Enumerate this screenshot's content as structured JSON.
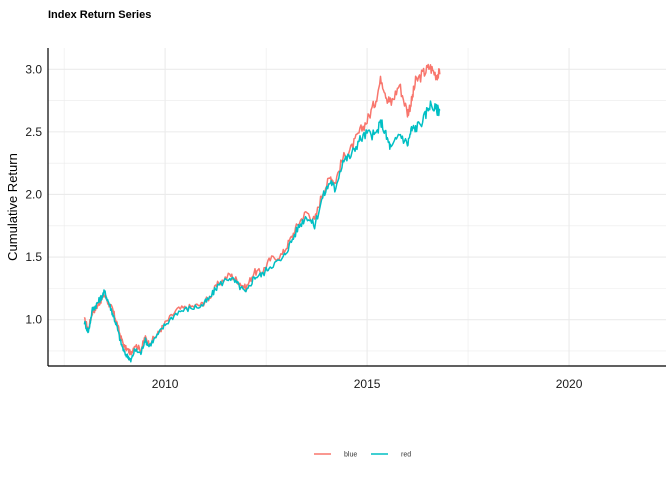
{
  "chart_data": {
    "type": "line",
    "title": "Index Return Series",
    "xlabel": "",
    "ylabel": "Cumulative Return",
    "xlim": [
      2007.1,
      2022.4
    ],
    "ylim": [
      0.63,
      3.17
    ],
    "x_ticks": [
      2010,
      2015,
      2020
    ],
    "x_tick_labels": [
      "2010",
      "2015",
      "2020"
    ],
    "y_ticks": [
      1.0,
      1.5,
      2.0,
      2.5,
      3.0
    ],
    "y_tick_labels": [
      "1.0",
      "1.5",
      "2.0",
      "2.5",
      "3.0"
    ],
    "grid": true,
    "legend": "bottom",
    "series": [
      {
        "name": "blue",
        "color": "#F8766D",
        "points": [
          [
            2008.0,
            1.0
          ],
          [
            2008.1,
            0.93
          ],
          [
            2008.2,
            1.06
          ],
          [
            2008.3,
            1.1
          ],
          [
            2008.4,
            1.15
          ],
          [
            2008.5,
            1.2
          ],
          [
            2008.6,
            1.13
          ],
          [
            2008.7,
            1.08
          ],
          [
            2008.8,
            0.98
          ],
          [
            2008.9,
            0.86
          ],
          [
            2009.0,
            0.78
          ],
          [
            2009.1,
            0.75
          ],
          [
            2009.15,
            0.73
          ],
          [
            2009.25,
            0.8
          ],
          [
            2009.4,
            0.76
          ],
          [
            2009.5,
            0.86
          ],
          [
            2009.6,
            0.81
          ],
          [
            2009.8,
            0.88
          ],
          [
            2010.0,
            0.97
          ],
          [
            2010.3,
            1.08
          ],
          [
            2010.6,
            1.1
          ],
          [
            2010.9,
            1.12
          ],
          [
            2011.1,
            1.18
          ],
          [
            2011.3,
            1.28
          ],
          [
            2011.6,
            1.36
          ],
          [
            2011.8,
            1.31
          ],
          [
            2012.0,
            1.25
          ],
          [
            2012.2,
            1.38
          ],
          [
            2012.4,
            1.38
          ],
          [
            2012.6,
            1.48
          ],
          [
            2012.9,
            1.52
          ],
          [
            2013.1,
            1.64
          ],
          [
            2013.3,
            1.77
          ],
          [
            2013.5,
            1.86
          ],
          [
            2013.7,
            1.79
          ],
          [
            2013.9,
            2.02
          ],
          [
            2014.1,
            2.14
          ],
          [
            2014.2,
            2.09
          ],
          [
            2014.4,
            2.29
          ],
          [
            2014.6,
            2.36
          ],
          [
            2014.8,
            2.49
          ],
          [
            2015.0,
            2.59
          ],
          [
            2015.2,
            2.74
          ],
          [
            2015.35,
            2.93
          ],
          [
            2015.5,
            2.77
          ],
          [
            2015.6,
            2.73
          ],
          [
            2015.8,
            2.88
          ],
          [
            2016.0,
            2.65
          ],
          [
            2016.1,
            2.74
          ],
          [
            2016.2,
            2.9
          ],
          [
            2016.4,
            2.97
          ],
          [
            2016.55,
            3.02
          ],
          [
            2016.7,
            2.96
          ],
          [
            2016.8,
            2.96
          ]
        ]
      },
      {
        "name": "red",
        "color": "#00BFC4",
        "points": [
          [
            2008.0,
            0.98
          ],
          [
            2008.1,
            0.9
          ],
          [
            2008.2,
            1.08
          ],
          [
            2008.3,
            1.12
          ],
          [
            2008.4,
            1.17
          ],
          [
            2008.5,
            1.22
          ],
          [
            2008.6,
            1.14
          ],
          [
            2008.7,
            1.05
          ],
          [
            2008.8,
            0.95
          ],
          [
            2008.9,
            0.82
          ],
          [
            2009.0,
            0.73
          ],
          [
            2009.1,
            0.7
          ],
          [
            2009.15,
            0.67
          ],
          [
            2009.25,
            0.76
          ],
          [
            2009.4,
            0.73
          ],
          [
            2009.5,
            0.84
          ],
          [
            2009.6,
            0.79
          ],
          [
            2009.8,
            0.87
          ],
          [
            2010.0,
            0.96
          ],
          [
            2010.3,
            1.06
          ],
          [
            2010.6,
            1.09
          ],
          [
            2010.9,
            1.11
          ],
          [
            2011.1,
            1.17
          ],
          [
            2011.3,
            1.27
          ],
          [
            2011.6,
            1.34
          ],
          [
            2011.8,
            1.28
          ],
          [
            2012.0,
            1.21
          ],
          [
            2012.2,
            1.34
          ],
          [
            2012.4,
            1.36
          ],
          [
            2012.6,
            1.43
          ],
          [
            2012.9,
            1.48
          ],
          [
            2013.1,
            1.61
          ],
          [
            2013.3,
            1.74
          ],
          [
            2013.5,
            1.83
          ],
          [
            2013.7,
            1.75
          ],
          [
            2013.9,
            1.98
          ],
          [
            2014.1,
            2.11
          ],
          [
            2014.2,
            2.04
          ],
          [
            2014.4,
            2.27
          ],
          [
            2014.6,
            2.31
          ],
          [
            2014.8,
            2.43
          ],
          [
            2015.0,
            2.49
          ],
          [
            2015.2,
            2.47
          ],
          [
            2015.35,
            2.58
          ],
          [
            2015.5,
            2.44
          ],
          [
            2015.6,
            2.36
          ],
          [
            2015.8,
            2.49
          ],
          [
            2016.0,
            2.4
          ],
          [
            2016.1,
            2.52
          ],
          [
            2016.2,
            2.53
          ],
          [
            2016.4,
            2.6
          ],
          [
            2016.55,
            2.72
          ],
          [
            2016.7,
            2.68
          ],
          [
            2016.8,
            2.67
          ]
        ]
      }
    ]
  }
}
